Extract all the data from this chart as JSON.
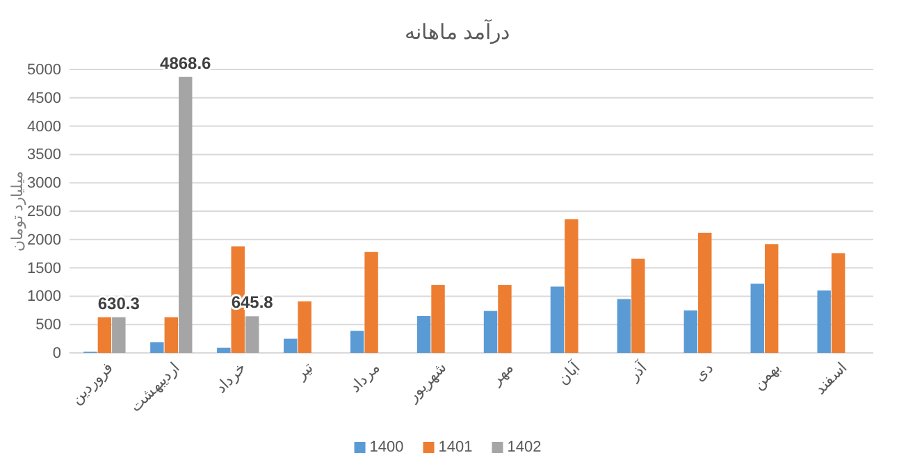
{
  "chart_data": {
    "type": "bar",
    "title": "درآمد ماهانه",
    "ylabel": "میلیارد تومان",
    "categories": [
      "فروردین",
      "اردیبهشت",
      "خرداد",
      "تیر",
      "مرداد",
      "شهریور",
      "مهر",
      "آبان",
      "آذر",
      "دی",
      "بهمن",
      "اسفند"
    ],
    "series": [
      {
        "name": "1400",
        "color": "#5b9bd5",
        "values": [
          20,
          190,
          90,
          250,
          390,
          650,
          740,
          1170,
          950,
          750,
          1220,
          1100
        ]
      },
      {
        "name": "1401",
        "color": "#ed7d31",
        "values": [
          630,
          630,
          1880,
          910,
          1780,
          1200,
          1200,
          2360,
          1660,
          2120,
          1920,
          1760
        ]
      },
      {
        "name": "1402",
        "color": "#a5a5a5",
        "values": [
          630.3,
          4868.6,
          645.8,
          null,
          null,
          null,
          null,
          null,
          null,
          null,
          null,
          null
        ],
        "value_labels": [
          "630.3",
          "4868.6",
          "645.8",
          null,
          null,
          null,
          null,
          null,
          null,
          null,
          null,
          null
        ]
      }
    ],
    "ylim": [
      0,
      5000
    ],
    "yticks": [
      0,
      500,
      1000,
      1500,
      2000,
      2500,
      3000,
      3500,
      4000,
      4500,
      5000
    ],
    "grid": "y",
    "legend": "bottom"
  }
}
